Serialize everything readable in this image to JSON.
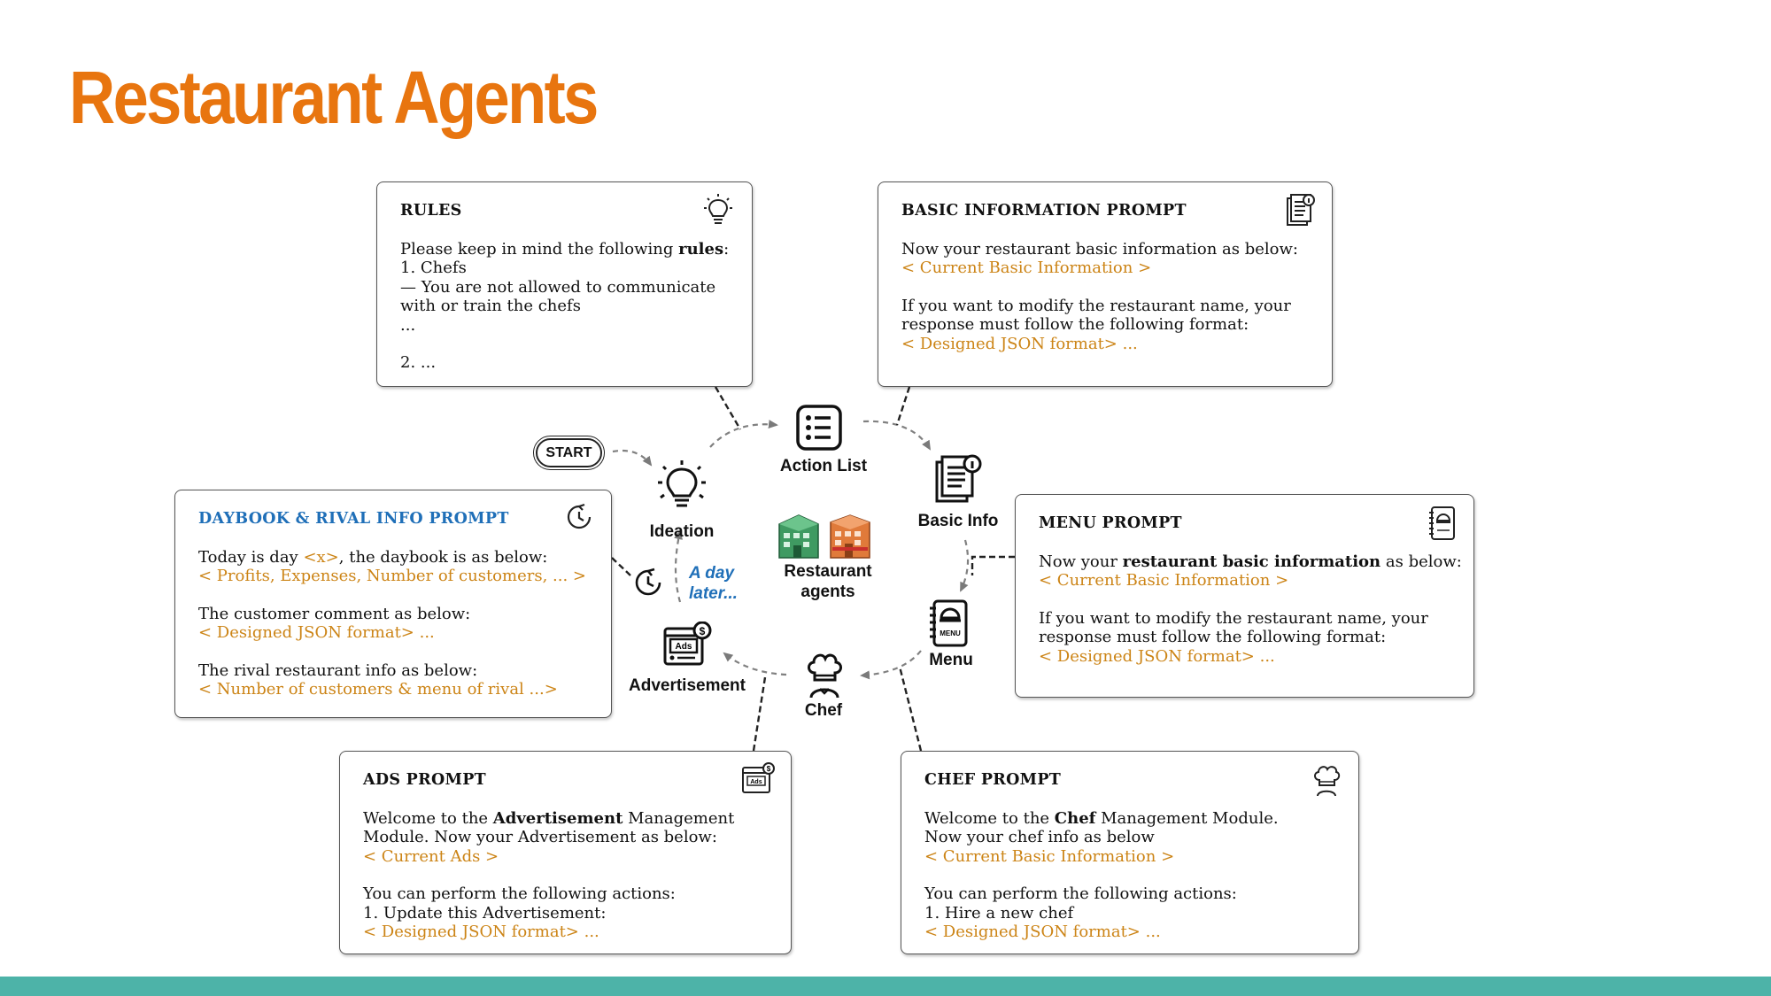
{
  "slide": {
    "title": "Restaurant Agents"
  },
  "colors": {
    "title": "#e8750f",
    "placeholder": "#cc8416",
    "blue_title": "#1f6fb8",
    "footer": "#4db3a8"
  },
  "cards": {
    "rules": {
      "title": "RULES",
      "icon": "lightbulb-icon",
      "line1_pre": "Please keep in mind the following ",
      "line1_bold": "rules",
      "line1_post": ":",
      "line2": "1. Chefs",
      "line3": "— You are not allowed to communicate",
      "line4": "with or train the chefs",
      "line5": "...",
      "line6": "2. ..."
    },
    "basic_info": {
      "title": "BASIC INFORMATION PROMPT",
      "icon": "document-info-icon",
      "line1": "Now your restaurant basic information as below:",
      "line2": "< Current Basic Information >",
      "line3": "If you want to modify the restaurant name, your",
      "line4": "response must follow the following format:",
      "line5": "< Designed JSON format> ..."
    },
    "daybook": {
      "title": "DAYBOOK & RIVAL INFO PROMPT",
      "icon": "clock-icon",
      "line1_pre": "Today is day ",
      "line1_var": "<x>",
      "line1_post": ", the daybook is as below:",
      "line2": "< Profits, Expenses, Number of customers, ... >",
      "line3": "The customer comment as below:",
      "line4": "< Designed JSON format> ...",
      "line5": "The rival restaurant info as below:",
      "line6": "< Number of customers & menu of rival ...>"
    },
    "menu": {
      "title": "MENU PROMPT",
      "icon": "menu-book-icon",
      "line1_pre": "Now your ",
      "line1_bold": "restaurant basic information",
      "line1_post": " as below:",
      "line2": "< Current Basic Information >",
      "line3": "If you want to modify the restaurant name, your",
      "line4": "response must follow the following format:",
      "line5": "< Designed JSON format> ..."
    },
    "ads": {
      "title": "ADS PROMPT",
      "icon": "ads-icon",
      "line1_pre": "Welcome to the ",
      "line1_bold": "Advertisement",
      "line1_post": " Management",
      "line2": "Module. Now your Advertisement as below:",
      "line3": "< Current Ads >",
      "line4": "You can perform the following actions:",
      "line5": "1. Update this Advertisement:",
      "line6": "< Designed JSON format> ..."
    },
    "chef": {
      "title": "CHEF PROMPT",
      "icon": "chef-hat-icon",
      "line1_pre": "Welcome to the ",
      "line1_bold": "Chef",
      "line1_post": " Management Module.",
      "line2": "Now your chef info as below",
      "line3": "< Current Basic Information >",
      "line4": "You can perform the following actions:",
      "line5": "1. Hire a new chef",
      "line6": "< Designed JSON format> ..."
    }
  },
  "cycle": {
    "start": "START",
    "center_line1": "Restaurant",
    "center_line2": "agents",
    "day_later_line1": "A day",
    "day_later_line2": "later...",
    "nodes": {
      "action_list": "Action List",
      "basic_info": "Basic Info",
      "menu": "Menu",
      "chef": "Chef",
      "advertisement": "Advertisement",
      "ideation": "Ideation"
    }
  }
}
